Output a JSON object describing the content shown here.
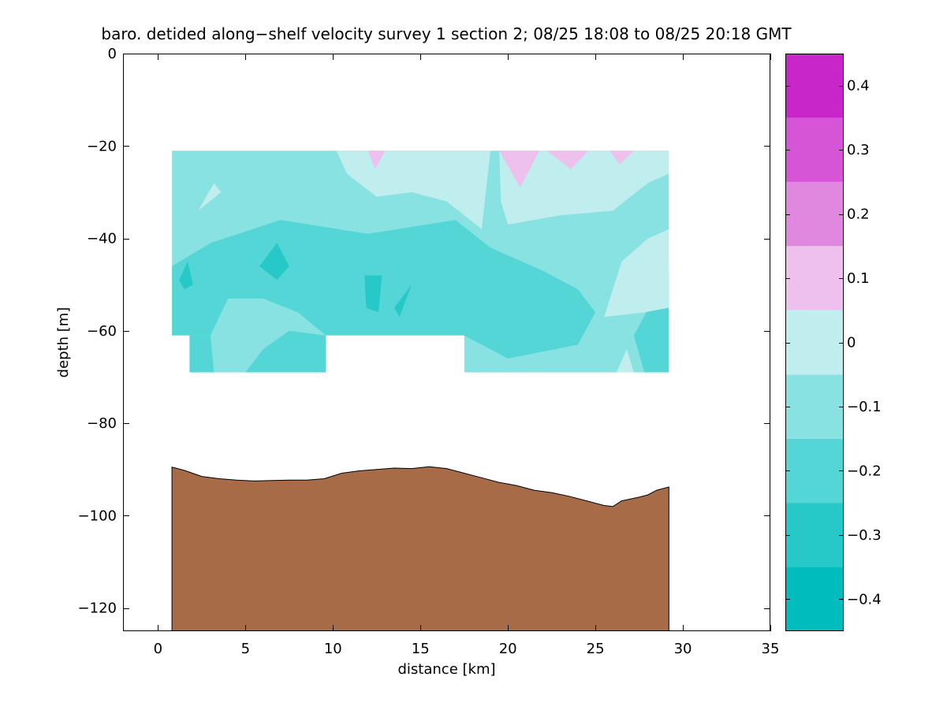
{
  "chart_data": {
    "type": "contour",
    "title": "baro. detided along−shelf velocity survey 1 section 2; 08/25 18:08 to 08/25 20:18 GMT",
    "xlabel": "distance [km]",
    "ylabel": "depth [m]",
    "xlim": [
      -2,
      35
    ],
    "ylim": [
      -125,
      0
    ],
    "xticks": [
      0,
      5,
      10,
      15,
      20,
      25,
      30,
      35
    ],
    "yticks": [
      0,
      -20,
      -40,
      -60,
      -80,
      -100,
      -120
    ],
    "colorbar": {
      "limits": [
        -0.45,
        0.45
      ],
      "ticks": [
        0.4,
        0.3,
        0.2,
        0.1,
        0,
        -0.1,
        -0.2,
        -0.3,
        -0.4
      ],
      "tick_labels": [
        "0.4",
        "0.3",
        "0.2",
        "0.1",
        "0",
        "−0.1",
        "−0.2",
        "−0.3",
        "−0.4"
      ],
      "levels": [
        -0.45,
        -0.35,
        -0.25,
        -0.15,
        -0.05,
        0.05,
        0.15,
        0.25,
        0.35,
        0.45
      ],
      "colors": [
        "#00bcbc",
        "#26c8c8",
        "#55d6d6",
        "#88e2e2",
        "#c0eded",
        "#edc0ed",
        "#e088e0",
        "#d655d6",
        "#c826c8",
        "#bc00bc"
      ]
    },
    "data_region": {
      "x_range": [
        0.8,
        29.2
      ],
      "top_depth": -21,
      "bottom_outline": [
        [
          0.8,
          -61
        ],
        [
          1.8,
          -61
        ],
        [
          1.8,
          -69
        ],
        [
          9.6,
          -69
        ],
        [
          9.6,
          -61
        ],
        [
          17.5,
          -61
        ],
        [
          17.5,
          -69
        ],
        [
          29.2,
          -69
        ]
      ]
    },
    "background_level": -0.15,
    "contour_patches": [
      {
        "level": -0.25,
        "points": [
          [
            0.8,
            -46
          ],
          [
            3,
            -41
          ],
          [
            7,
            -36
          ],
          [
            12,
            -39
          ],
          [
            17,
            -36
          ],
          [
            19,
            -42
          ],
          [
            22,
            -47
          ],
          [
            24,
            -51
          ],
          [
            25,
            -56
          ],
          [
            24,
            -63
          ],
          [
            20,
            -66
          ],
          [
            17.5,
            -61
          ],
          [
            9.6,
            -61
          ],
          [
            8,
            -56
          ],
          [
            6,
            -53
          ],
          [
            4,
            -53
          ],
          [
            3,
            -61
          ],
          [
            0.8,
            -61
          ]
        ]
      },
      {
        "level": -0.25,
        "points": [
          [
            1.8,
            -61
          ],
          [
            3,
            -61
          ],
          [
            3.2,
            -69
          ],
          [
            1.8,
            -69
          ]
        ]
      },
      {
        "level": -0.25,
        "points": [
          [
            5,
            -69
          ],
          [
            6,
            -64
          ],
          [
            7.5,
            -60
          ],
          [
            9.6,
            -61
          ],
          [
            9.6,
            -69
          ]
        ]
      },
      {
        "level": -0.25,
        "points": [
          [
            27.2,
            -61
          ],
          [
            29.2,
            -47
          ],
          [
            29.2,
            -69
          ],
          [
            27.8,
            -69
          ]
        ]
      },
      {
        "level": -0.35,
        "points": [
          [
            5.8,
            -46
          ],
          [
            6.8,
            -41
          ],
          [
            7.5,
            -46
          ],
          [
            6.8,
            -49
          ]
        ]
      },
      {
        "level": -0.35,
        "points": [
          [
            11.8,
            -48
          ],
          [
            12.8,
            -48
          ],
          [
            12.6,
            -56
          ],
          [
            11.9,
            -55
          ]
        ]
      },
      {
        "level": -0.35,
        "points": [
          [
            13.5,
            -55
          ],
          [
            14.5,
            -50
          ],
          [
            14.1,
            -54
          ],
          [
            13.8,
            -57
          ]
        ]
      },
      {
        "level": -0.35,
        "points": [
          [
            1.2,
            -49
          ],
          [
            1.7,
            -45
          ],
          [
            2,
            -50
          ],
          [
            1.5,
            -51
          ]
        ]
      },
      {
        "level": -0.05,
        "points": [
          [
            10.2,
            -21
          ],
          [
            19,
            -21
          ],
          [
            18.5,
            -38
          ],
          [
            16.5,
            -32
          ],
          [
            14.5,
            -30
          ],
          [
            12.5,
            -31
          ],
          [
            10.8,
            -26
          ]
        ]
      },
      {
        "level": -0.05,
        "points": [
          [
            19.5,
            -21
          ],
          [
            29.2,
            -21
          ],
          [
            29.2,
            -26
          ],
          [
            28,
            -28
          ],
          [
            26,
            -34
          ],
          [
            23,
            -35
          ],
          [
            20,
            -37
          ],
          [
            19.6,
            -32
          ]
        ]
      },
      {
        "level": -0.05,
        "points": [
          [
            25.5,
            -57
          ],
          [
            26.5,
            -45
          ],
          [
            28,
            -40
          ],
          [
            29.2,
            -38
          ],
          [
            29.2,
            -55
          ],
          [
            27.8,
            -56
          ]
        ]
      },
      {
        "level": -0.05,
        "points": [
          [
            2.3,
            -34
          ],
          [
            3.2,
            -28
          ],
          [
            3.6,
            -30
          ]
        ]
      },
      {
        "level": -0.05,
        "points": [
          [
            26.2,
            -69
          ],
          [
            26.8,
            -64
          ],
          [
            27.2,
            -69
          ]
        ]
      },
      {
        "level": 0.05,
        "points": [
          [
            12,
            -21
          ],
          [
            13,
            -21
          ],
          [
            12.4,
            -25
          ]
        ]
      },
      {
        "level": 0.05,
        "points": [
          [
            19.5,
            -21
          ],
          [
            21.8,
            -21
          ],
          [
            20.7,
            -29
          ]
        ]
      },
      {
        "level": 0.05,
        "points": [
          [
            22.2,
            -21
          ],
          [
            24.6,
            -21
          ],
          [
            23.6,
            -25
          ]
        ]
      },
      {
        "level": 0.05,
        "points": [
          [
            25.8,
            -21
          ],
          [
            27.2,
            -21
          ],
          [
            26.4,
            -24
          ]
        ]
      }
    ],
    "seafloor": {
      "color": "#a86b47",
      "x": [
        0.8,
        1.5,
        2.5,
        3.5,
        4.5,
        5.5,
        6.5,
        7.5,
        8.5,
        9.5,
        10.5,
        11.5,
        12.5,
        13.5,
        14.5,
        15.5,
        16.5,
        17.5,
        18.5,
        19.5,
        20.5,
        21.5,
        22.5,
        23.5,
        24.5,
        25.5,
        26.0,
        26.5,
        27.5,
        28.0,
        28.5,
        29.2
      ],
      "depth": [
        -89.5,
        -90.2,
        -91.5,
        -92.0,
        -92.3,
        -92.5,
        -92.4,
        -92.3,
        -92.3,
        -92.0,
        -90.8,
        -90.3,
        -90.0,
        -89.7,
        -89.8,
        -89.4,
        -89.8,
        -90.8,
        -91.8,
        -92.8,
        -93.5,
        -94.5,
        -95.0,
        -95.8,
        -96.8,
        -97.8,
        -98.0,
        -96.8,
        -96.0,
        -95.5,
        -94.5,
        -93.8
      ]
    }
  }
}
